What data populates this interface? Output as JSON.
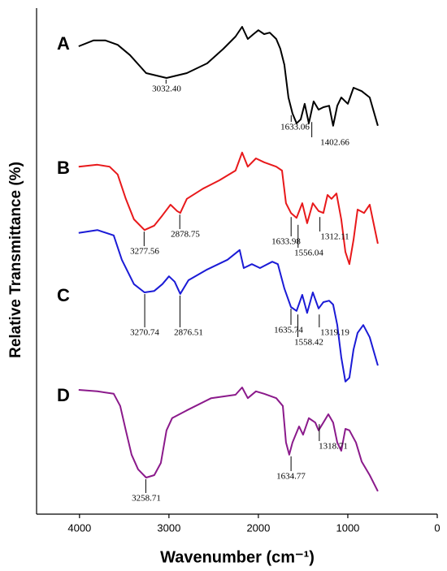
{
  "chart_data": {
    "type": "line",
    "xlabel": "Wavenumber (cm⁻¹)",
    "ylabel": "Relative Transmittance (%)",
    "xlim": [
      4480,
      0
    ],
    "xticks": [
      4000,
      3000,
      2000,
      1000,
      0
    ],
    "ylim": [
      0,
      100
    ],
    "series": [
      {
        "name": "A",
        "color": "#000000",
        "x": [
          4009,
          3845,
          3709,
          3573,
          3436,
          3255,
          3027,
          2800,
          2573,
          2391,
          2255,
          2182,
          2118,
          2055,
          2000,
          1936,
          1873,
          1800,
          1755,
          1709,
          1664,
          1618,
          1573,
          1527,
          1482,
          1436,
          1382,
          1327,
          1273,
          1209,
          1164,
          1118,
          1073,
          1000,
          936,
          845,
          755,
          664
        ],
        "values": [
          96,
          97.2,
          97.2,
          96.3,
          94.2,
          90.5,
          89.5,
          90.5,
          92.5,
          95.5,
          98,
          100,
          97.5,
          98.5,
          99.3,
          98.5,
          98.8,
          97.5,
          95.5,
          92.2,
          85.5,
          82.2,
          80.2,
          81,
          84.2,
          80.2,
          84.7,
          83,
          83.5,
          83.8,
          79.7,
          83.8,
          85.5,
          84.2,
          87.5,
          86.8,
          85.5,
          79.7
        ],
        "annotations": [
          {
            "label": "3032.40",
            "x": 3032.4,
            "y": 89.5
          },
          {
            "label": "1633.06",
            "x": 1633.06,
            "y": 82.2
          },
          {
            "label": "1402.66",
            "x": 1402.66,
            "y": 80.8
          }
        ]
      },
      {
        "name": "B",
        "color": "#e8191b",
        "x": [
          4009,
          3800,
          3664,
          3573,
          3482,
          3391,
          3273,
          3164,
          3073,
          2982,
          2909,
          2873,
          2800,
          2618,
          2436,
          2255,
          2182,
          2118,
          2027,
          1936,
          1800,
          1736,
          1691,
          1636,
          1573,
          1509,
          1455,
          1391,
          1327,
          1273,
          1227,
          1182,
          1127,
          1073,
          1027,
          982,
          936,
          891,
          818,
          755,
          664
        ],
        "values": [
          71.3,
          71.7,
          71.3,
          69.7,
          64.7,
          60.5,
          58.3,
          59.2,
          61.3,
          63.5,
          62.2,
          61.8,
          64.7,
          66.8,
          68.5,
          70.5,
          74.2,
          71.3,
          73,
          72.2,
          71.3,
          70.5,
          63.8,
          61.8,
          60.8,
          63.8,
          59.7,
          63.8,
          62.2,
          61.8,
          65.5,
          64.7,
          65.8,
          60.5,
          53.8,
          51.3,
          56.3,
          62.5,
          61.8,
          63.5,
          55.5
        ],
        "annotations": [
          {
            "label": "3277.56",
            "x": 3277.56,
            "y": 58.3
          },
          {
            "label": "2878.75",
            "x": 2878.75,
            "y": 61.8
          },
          {
            "label": "1633.98",
            "x": 1633.98,
            "y": 61.3
          },
          {
            "label": "1556.04",
            "x": 1556.04,
            "y": 59.7
          },
          {
            "label": "1312.11",
            "x": 1312.11,
            "y": 61.3
          }
        ]
      },
      {
        "name": "C",
        "color": "#1b1bd6",
        "x": [
          4009,
          3800,
          3618,
          3527,
          3391,
          3273,
          3164,
          3073,
          3000,
          2936,
          2873,
          2782,
          2573,
          2345,
          2209,
          2164,
          2073,
          1982,
          1845,
          1782,
          1709,
          1636,
          1573,
          1509,
          1455,
          1391,
          1327,
          1273,
          1209,
          1164,
          1118,
          1073,
          1027,
          982,
          936,
          891,
          827,
          755,
          664
        ],
        "values": [
          57.7,
          58.3,
          57.2,
          52.2,
          47.2,
          45.5,
          45.8,
          47.2,
          48.8,
          47.7,
          45.2,
          48,
          50.2,
          52.2,
          54.2,
          50.5,
          51.3,
          50.5,
          51.8,
          51.3,
          46.3,
          42.5,
          41.7,
          45,
          41.3,
          45.5,
          42.2,
          43.5,
          43.8,
          43,
          38.8,
          32.2,
          27.2,
          28,
          33.8,
          37.2,
          38.8,
          36.3,
          30.5
        ],
        "annotations": [
          {
            "label": "3270.74",
            "x": 3270.74,
            "y": 45.5
          },
          {
            "label": "2876.51",
            "x": 2876.51,
            "y": 45.2
          },
          {
            "label": "1635.74",
            "x": 1635.74,
            "y": 42.5
          },
          {
            "label": "1558.42",
            "x": 1558.42,
            "y": 41.3
          },
          {
            "label": "1319.19",
            "x": 1319.19,
            "y": 41.3
          }
        ]
      },
      {
        "name": "D",
        "color": "#8b1a8b",
        "x": [
          4009,
          3800,
          3618,
          3545,
          3482,
          3418,
          3345,
          3255,
          3164,
          3091,
          3027,
          2964,
          2800,
          2527,
          2255,
          2182,
          2118,
          2027,
          1936,
          1800,
          1727,
          1691,
          1655,
          1618,
          1545,
          1500,
          1436,
          1364,
          1327,
          1273,
          1218,
          1164,
          1118,
          1073,
          1027,
          982,
          909,
          845,
          755,
          664
        ],
        "values": [
          25.5,
          25.2,
          24.7,
          22.2,
          17.2,
          12.2,
          9.2,
          7.5,
          8,
          10.5,
          17.2,
          19.7,
          21.3,
          23.8,
          24.5,
          26,
          23.8,
          25.2,
          24.7,
          23.8,
          22.2,
          14.7,
          12.2,
          14.7,
          18,
          16.3,
          19.7,
          18.8,
          17.2,
          18.8,
          20.5,
          18.8,
          14.7,
          13,
          17.5,
          17.2,
          14.7,
          10.8,
          8,
          4.7
        ],
        "annotations": [
          {
            "label": "3258.71",
            "x": 3258.71,
            "y": 7.5
          },
          {
            "label": "1634.77",
            "x": 1634.77,
            "y": 12.2
          },
          {
            "label": "1318.71",
            "x": 1318.71,
            "y": 18.8
          }
        ]
      }
    ]
  }
}
